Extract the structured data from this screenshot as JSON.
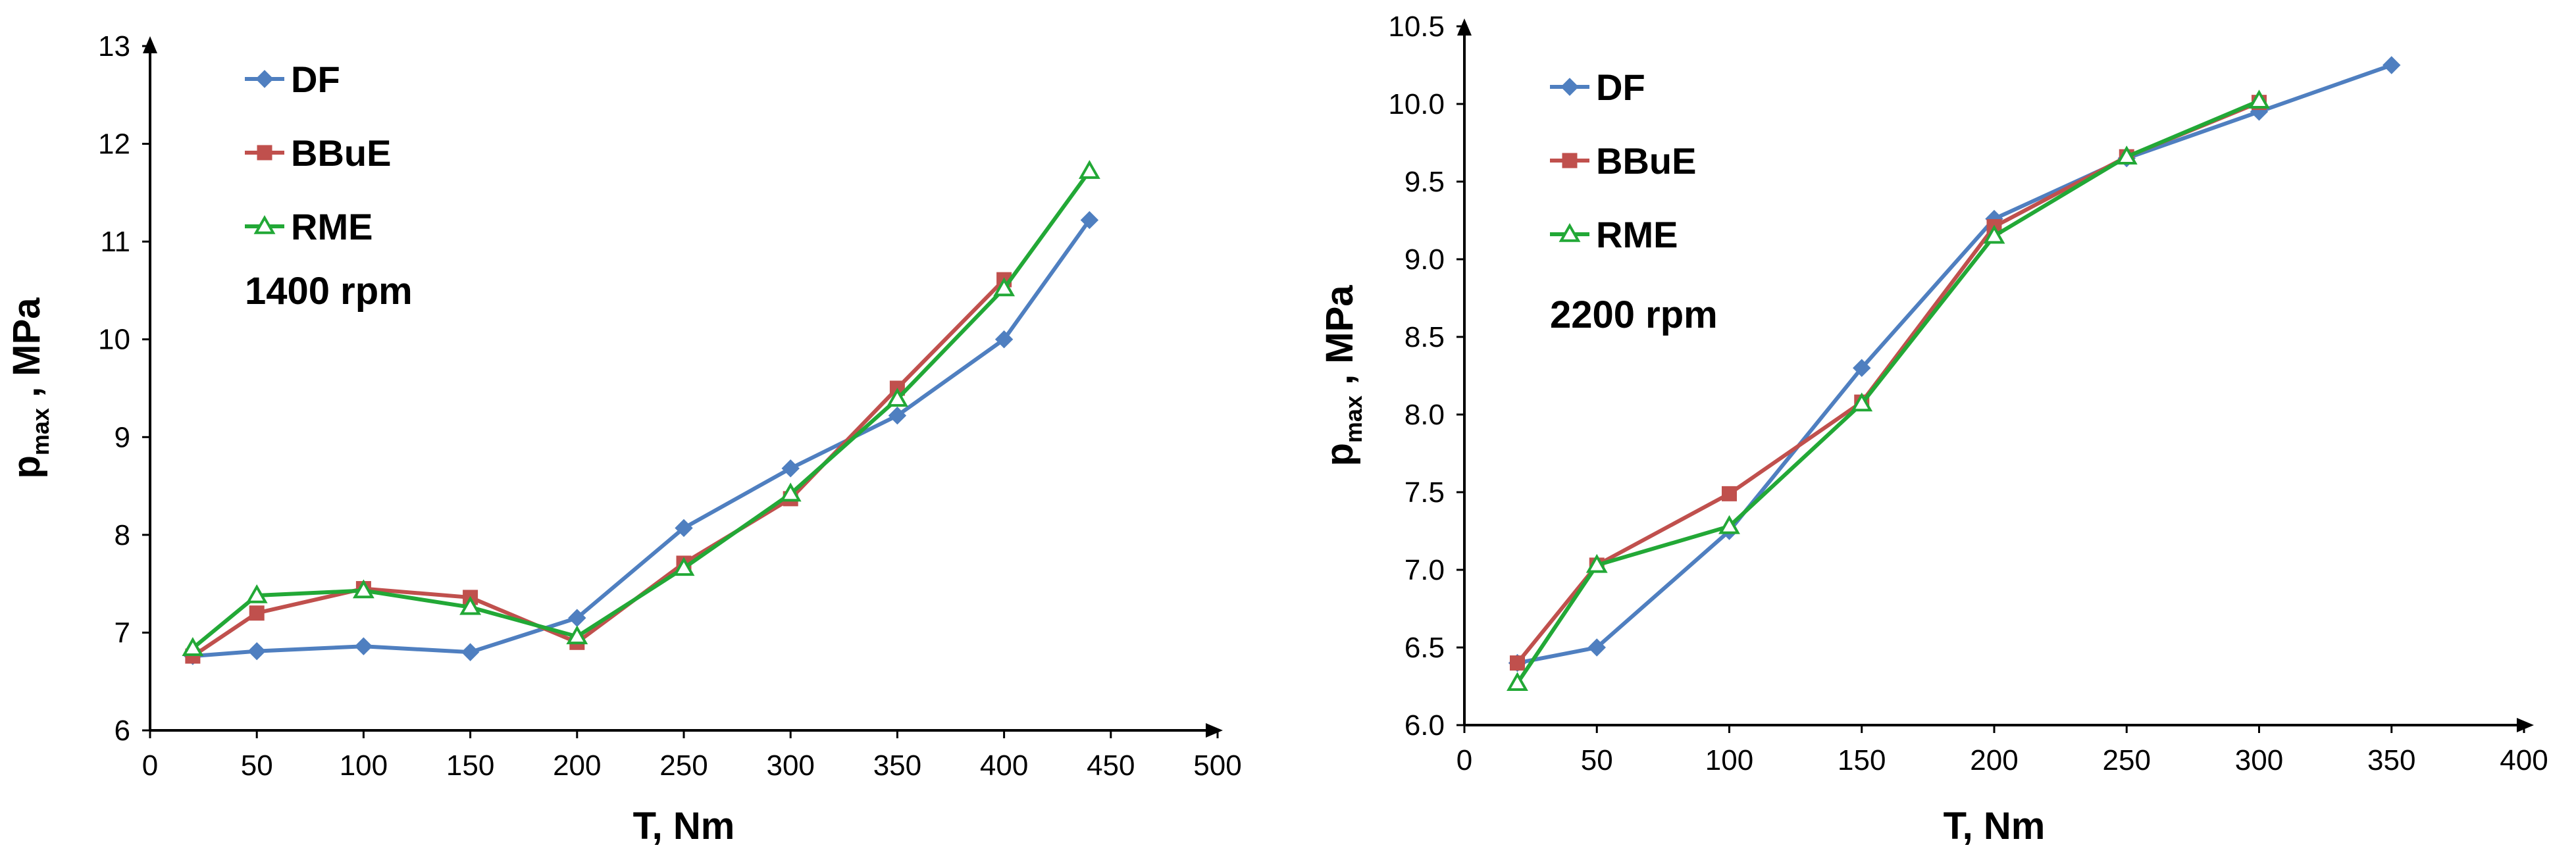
{
  "chart_data": [
    {
      "type": "line",
      "title": "",
      "annotation": "1400 rpm",
      "xlabel": "T, Nm",
      "ylabel": {
        "main": "p",
        "sub": "max",
        "suffix": " , MPa"
      },
      "xlim": [
        0,
        500
      ],
      "ylim": [
        6,
        13
      ],
      "xticks": [
        "0",
        "50",
        "100",
        "150",
        "200",
        "250",
        "300",
        "350",
        "400",
        "450",
        "500"
      ],
      "yticks": [
        "6",
        "7",
        "8",
        "9",
        "10",
        "11",
        "12",
        "13"
      ],
      "legend_position": "top-left",
      "series": [
        {
          "name": "DF",
          "color": "#4F7FC0",
          "marker": "diamond",
          "x": [
            20,
            50,
            100,
            150,
            200,
            250,
            300,
            350,
            400,
            440
          ],
          "y": [
            6.76,
            6.81,
            6.86,
            6.8,
            7.15,
            8.07,
            8.68,
            9.22,
            10.0,
            11.22
          ]
        },
        {
          "name": "BBuE",
          "color": "#C0504D",
          "marker": "square",
          "x": [
            20,
            50,
            100,
            150,
            200,
            250,
            300,
            350,
            400
          ],
          "y": [
            6.76,
            7.2,
            7.45,
            7.36,
            6.9,
            7.71,
            8.37,
            9.5,
            10.61
          ]
        },
        {
          "name": "RME",
          "color": "#22A836",
          "marker": "triangle",
          "x": [
            20,
            50,
            100,
            150,
            200,
            250,
            300,
            350,
            400,
            440
          ],
          "y": [
            6.84,
            7.38,
            7.43,
            7.26,
            6.96,
            7.66,
            8.42,
            9.39,
            10.52,
            11.72
          ]
        }
      ]
    },
    {
      "type": "line",
      "title": "",
      "annotation": "2200 rpm",
      "xlabel": "T, Nm",
      "ylabel": {
        "main": "p",
        "sub": "max",
        "suffix": " , MPa"
      },
      "xlim": [
        0,
        400
      ],
      "ylim": [
        6.0,
        10.5
      ],
      "xticks": [
        "0",
        "50",
        "100",
        "150",
        "200",
        "250",
        "300",
        "350",
        "400"
      ],
      "yticks": [
        "6.0",
        "6.5",
        "7.0",
        "7.5",
        "8.0",
        "8.5",
        "9.0",
        "9.5",
        "10.0",
        "10.5"
      ],
      "legend_position": "top-left",
      "series": [
        {
          "name": "DF",
          "color": "#4F7FC0",
          "marker": "diamond",
          "x": [
            20,
            50,
            100,
            150,
            200,
            250,
            300,
            350
          ],
          "y": [
            6.4,
            6.5,
            7.25,
            8.3,
            9.26,
            9.65,
            9.95,
            10.25
          ]
        },
        {
          "name": "BBuE",
          "color": "#C0504D",
          "marker": "square",
          "x": [
            20,
            50,
            100,
            150,
            200,
            250,
            300
          ],
          "y": [
            6.4,
            7.03,
            7.49,
            8.08,
            9.21,
            9.66,
            10.01
          ]
        },
        {
          "name": "RME",
          "color": "#22A836",
          "marker": "triangle",
          "x": [
            20,
            50,
            100,
            150,
            200,
            250,
            300
          ],
          "y": [
            6.27,
            7.03,
            7.28,
            8.07,
            9.15,
            9.66,
            10.02
          ]
        }
      ]
    }
  ]
}
